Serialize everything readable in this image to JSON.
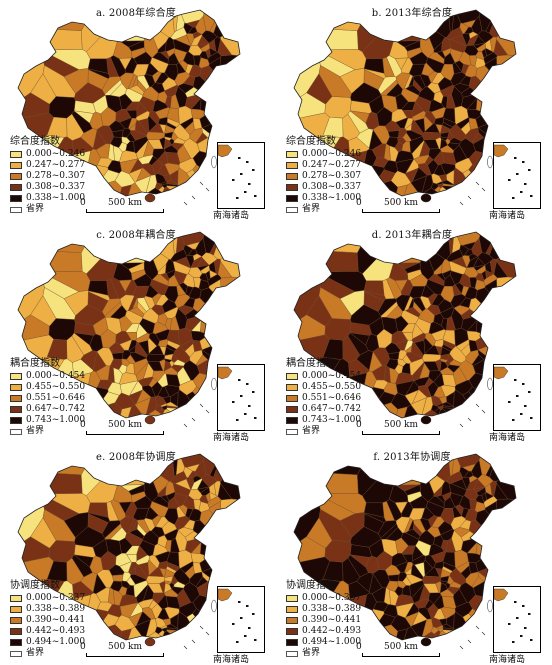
{
  "panels": [
    {
      "id": "a",
      "title": "a. 2008年综合度",
      "legend_title": "综合度指数",
      "classes": [
        {
          "label": "0.000~0.246",
          "color": "#f7e37d"
        },
        {
          "label": "0.247~0.277",
          "color": "#eeb044"
        },
        {
          "label": "0.278~0.307",
          "color": "#c97a26"
        },
        {
          "label": "0.308~0.337",
          "color": "#7a3216"
        },
        {
          "label": "0.338~1.000",
          "color": "#1e0805"
        }
      ],
      "boundary_label": "省界",
      "scale_zero": "0",
      "scale_distance": "500 km",
      "inset_label": "南海诸岛"
    },
    {
      "id": "b",
      "title": "b. 2013年综合度",
      "legend_title": "综合度指数",
      "classes": [
        {
          "label": "0.000~0.246",
          "color": "#f7e37d"
        },
        {
          "label": "0.247~0.277",
          "color": "#eeb044"
        },
        {
          "label": "0.278~0.307",
          "color": "#c97a26"
        },
        {
          "label": "0.308~0.337",
          "color": "#7a3216"
        },
        {
          "label": "0.338~1.000",
          "color": "#1e0805"
        }
      ],
      "boundary_label": "省界",
      "scale_zero": "0",
      "scale_distance": "500 km",
      "inset_label": "南海诸岛"
    },
    {
      "id": "c",
      "title": "c. 2008年耦合度",
      "legend_title": "耦合度指数",
      "classes": [
        {
          "label": "0.000~0.454",
          "color": "#f7e37d"
        },
        {
          "label": "0.455~0.550",
          "color": "#eeb044"
        },
        {
          "label": "0.551~0.646",
          "color": "#c97a26"
        },
        {
          "label": "0.647~0.742",
          "color": "#7a3216"
        },
        {
          "label": "0.743~1.000",
          "color": "#1e0805"
        }
      ],
      "boundary_label": "省界",
      "scale_zero": "0",
      "scale_distance": "500 km",
      "inset_label": "南海诸岛"
    },
    {
      "id": "d",
      "title": "d. 2013年耦合度",
      "legend_title": "耦合度指数",
      "classes": [
        {
          "label": "0.000~0.454",
          "color": "#f7e37d"
        },
        {
          "label": "0.455~0.550",
          "color": "#eeb044"
        },
        {
          "label": "0.551~0.646",
          "color": "#c97a26"
        },
        {
          "label": "0.647~0.742",
          "color": "#7a3216"
        },
        {
          "label": "0.743~1.000",
          "color": "#1e0805"
        }
      ],
      "boundary_label": "省界",
      "scale_zero": "0",
      "scale_distance": "500 km",
      "inset_label": "南海诸岛"
    },
    {
      "id": "e",
      "title": "e. 2008年协调度",
      "legend_title": "协调度指数",
      "classes": [
        {
          "label": "0.000~0.337",
          "color": "#f7e37d"
        },
        {
          "label": "0.338~0.389",
          "color": "#eeb044"
        },
        {
          "label": "0.390~0.441",
          "color": "#c97a26"
        },
        {
          "label": "0.442~0.493",
          "color": "#7a3216"
        },
        {
          "label": "0.494~1.000",
          "color": "#1e0805"
        }
      ],
      "boundary_label": "省界",
      "scale_zero": "0",
      "scale_distance": "500 km",
      "inset_label": "南海诸岛"
    },
    {
      "id": "f",
      "title": "f. 2013年协调度",
      "legend_title": "协调度指数",
      "classes": [
        {
          "label": "0.000~0.337",
          "color": "#f7e37d"
        },
        {
          "label": "0.338~0.389",
          "color": "#eeb044"
        },
        {
          "label": "0.390~0.441",
          "color": "#c97a26"
        },
        {
          "label": "0.442~0.493",
          "color": "#7a3216"
        },
        {
          "label": "0.494~1.000",
          "color": "#1e0805"
        }
      ],
      "boundary_label": "省界",
      "scale_zero": "0",
      "scale_distance": "500 km",
      "inset_label": "南海诸岛"
    }
  ]
}
